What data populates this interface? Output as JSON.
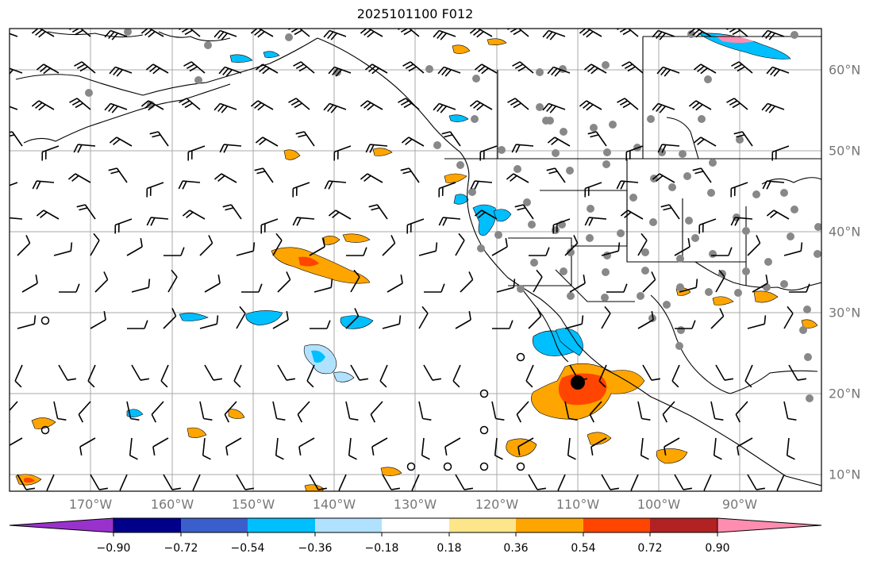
{
  "map": {
    "title": "2025101100 F012",
    "lon_labels": [
      "170°W",
      "160°W",
      "150°W",
      "140°W",
      "130°W",
      "120°W",
      "110°W",
      "100°W",
      "90°W"
    ],
    "lat_labels": [
      "60°N",
      "50°N",
      "40°N",
      "30°N",
      "20°N",
      "10°N"
    ],
    "marker": "storm center marker near 110°W 21°N"
  },
  "colorbar": {
    "ticks": [
      "−0.90",
      "−0.72",
      "−0.54",
      "−0.36",
      "−0.18",
      "0.18",
      "0.36",
      "0.54",
      "0.72",
      "0.90"
    ],
    "colors": [
      "#9932cc",
      "#00008b",
      "#3a5fcd",
      "#00bfff",
      "#b0e2ff",
      "#ffffff",
      "#fde68a",
      "#ffa500",
      "#ff4500",
      "#b22222",
      "#ff8db0"
    ]
  }
}
